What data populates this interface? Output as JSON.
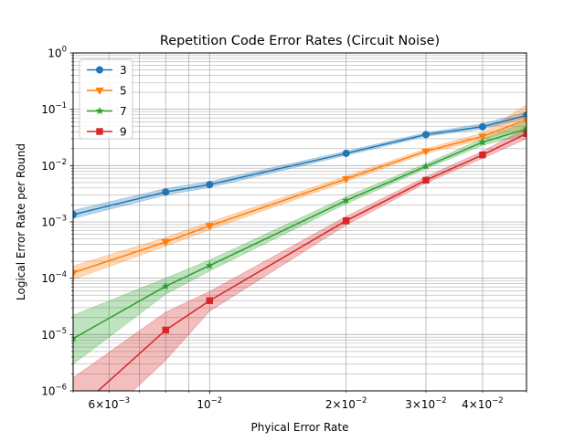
{
  "chart_data": {
    "type": "line",
    "title": "Repetition Code Error Rates (Circuit Noise)",
    "xlabel": "Phyical Error Rate",
    "ylabel": "Logical Error Rate per Round",
    "xscale": "log",
    "yscale": "log",
    "xlim": [
      0.005,
      0.05
    ],
    "ylim": [
      1e-06,
      1
    ],
    "grid": true,
    "legend_position": "top-left",
    "x_ticks_major": [
      {
        "value": 0.01,
        "base": "10",
        "exp": "−2"
      }
    ],
    "x_ticks_minor": [
      {
        "value": 0.006,
        "mant": "6",
        "base": "10",
        "exp": "−3"
      },
      {
        "value": 0.02,
        "mant": "2",
        "base": "10",
        "exp": "−2"
      },
      {
        "value": 0.03,
        "mant": "3",
        "base": "10",
        "exp": "−2"
      },
      {
        "value": 0.04,
        "mant": "4",
        "base": "10",
        "exp": "−2"
      }
    ],
    "y_ticks": [
      {
        "value": 1e-06,
        "base": "10",
        "exp": "−6"
      },
      {
        "value": 1e-05,
        "base": "10",
        "exp": "−5"
      },
      {
        "value": 0.0001,
        "base": "10",
        "exp": "−4"
      },
      {
        "value": 0.001,
        "base": "10",
        "exp": "−3"
      },
      {
        "value": 0.01,
        "base": "10",
        "exp": "−2"
      },
      {
        "value": 0.1,
        "base": "10",
        "exp": "−1"
      },
      {
        "value": 1,
        "base": "10",
        "exp": "0"
      }
    ],
    "series": [
      {
        "name": "3",
        "color": "#1f77b4",
        "marker": "circle",
        "x": [
          0.005,
          0.008,
          0.01,
          0.02,
          0.03,
          0.04,
          0.05
        ],
        "y": [
          0.00135,
          0.0034,
          0.0046,
          0.0165,
          0.0355,
          0.049,
          0.078
        ],
        "lower": [
          0.00115,
          0.003,
          0.0041,
          0.0152,
          0.033,
          0.045,
          0.068
        ],
        "upper": [
          0.0016,
          0.0039,
          0.0052,
          0.018,
          0.0385,
          0.055,
          0.09
        ]
      },
      {
        "name": "5",
        "color": "#ff7f0e",
        "marker": "triangle-down",
        "x": [
          0.005,
          0.008,
          0.01,
          0.02,
          0.03,
          0.04,
          0.05
        ],
        "y": [
          0.000125,
          0.00044,
          0.00085,
          0.0058,
          0.018,
          0.033,
          0.065
        ],
        "lower": [
          9.5e-05,
          0.00037,
          0.00073,
          0.0052,
          0.0165,
          0.029,
          0.048
        ],
        "upper": [
          0.000165,
          0.00053,
          0.00099,
          0.0065,
          0.0198,
          0.038,
          0.12
        ]
      },
      {
        "name": "7",
        "color": "#2ca02c",
        "marker": "star",
        "x": [
          0.005,
          0.008,
          0.01,
          0.02,
          0.03,
          0.04,
          0.05
        ],
        "y": [
          8.5e-06,
          7.2e-05,
          0.000168,
          0.0024,
          0.0097,
          0.026,
          0.045
        ],
        "lower": [
          3e-06,
          5.2e-05,
          0.000135,
          0.0021,
          0.0088,
          0.023,
          0.036
        ],
        "upper": [
          2.2e-05,
          0.0001,
          0.00021,
          0.0028,
          0.0108,
          0.03,
          0.06
        ]
      },
      {
        "name": "9",
        "color": "#d62728",
        "marker": "square",
        "x": [
          0.005,
          0.008,
          0.01,
          0.02,
          0.03,
          0.04,
          0.05
        ],
        "y": [
          4e-07,
          1.2e-05,
          4e-05,
          0.00105,
          0.0055,
          0.0155,
          0.037
        ],
        "lower": [
          1e-07,
          3.5e-06,
          2.6e-05,
          0.00088,
          0.0049,
          0.0135,
          0.03
        ],
        "upper": [
          1.7e-06,
          2.5e-05,
          5.8e-05,
          0.00125,
          0.0063,
          0.018,
          0.046
        ]
      }
    ]
  }
}
